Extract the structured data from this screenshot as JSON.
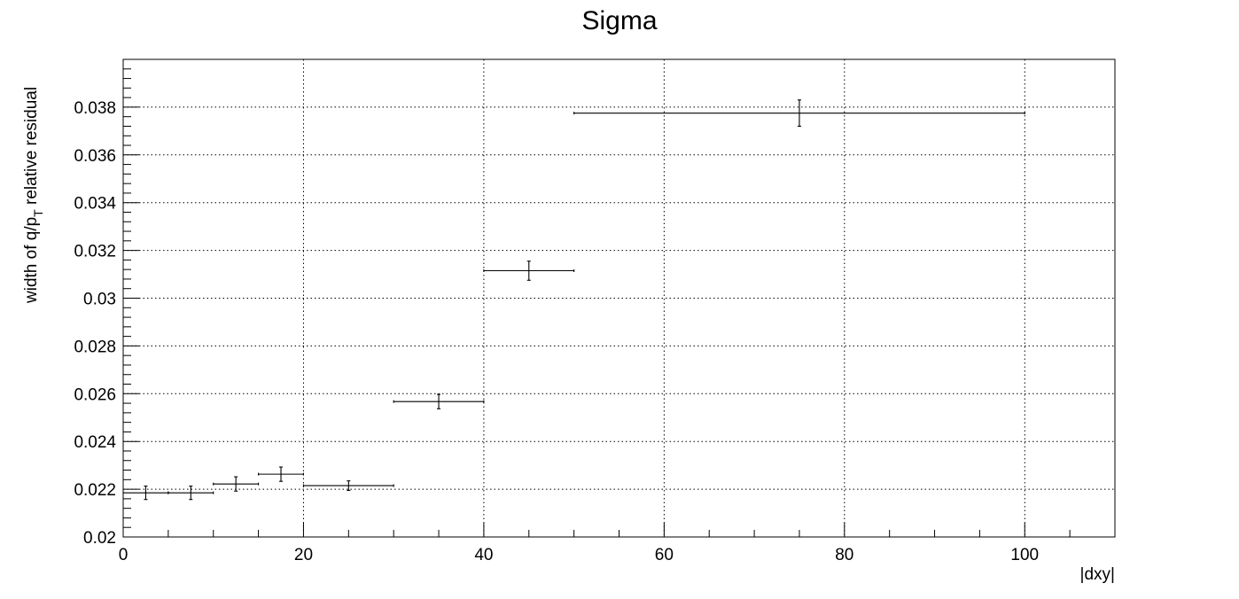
{
  "chart_data": {
    "type": "scatter",
    "title": "Sigma",
    "xlabel": "|dxy|",
    "ylabel_main": "width of q/p",
    "ylabel_sub": "T",
    "ylabel_tail": " relative residual",
    "xlim": [
      0,
      110
    ],
    "ylim": [
      0.02,
      0.04
    ],
    "x_ticks": [
      0,
      20,
      40,
      60,
      80,
      100
    ],
    "x_tick_labels": [
      "0",
      "20",
      "40",
      "60",
      "80",
      "100"
    ],
    "y_ticks": [
      0.02,
      0.022,
      0.024,
      0.026,
      0.028,
      0.03,
      0.032,
      0.034,
      0.036,
      0.038
    ],
    "y_tick_labels": [
      "0.02",
      "0.022",
      "0.024",
      "0.026",
      "0.028",
      "0.03",
      "0.032",
      "0.034",
      "0.036",
      "0.038"
    ],
    "grid": true,
    "points": [
      {
        "x": 2.5,
        "x_low": 0,
        "x_high": 5,
        "y": 0.02185,
        "y_err": 0.00028
      },
      {
        "x": 7.5,
        "x_low": 5,
        "x_high": 10,
        "y": 0.02185,
        "y_err": 0.00028
      },
      {
        "x": 12.5,
        "x_low": 10,
        "x_high": 15,
        "y": 0.02222,
        "y_err": 0.0003
      },
      {
        "x": 17.5,
        "x_low": 15,
        "x_high": 20,
        "y": 0.02263,
        "y_err": 0.0003
      },
      {
        "x": 25,
        "x_low": 20,
        "x_high": 30,
        "y": 0.02215,
        "y_err": 0.0002
      },
      {
        "x": 35,
        "x_low": 30,
        "x_high": 40,
        "y": 0.02567,
        "y_err": 0.0003
      },
      {
        "x": 45,
        "x_low": 40,
        "x_high": 50,
        "y": 0.03115,
        "y_err": 0.0004
      },
      {
        "x": 75,
        "x_low": 50,
        "x_high": 100,
        "y": 0.03775,
        "y_err": 0.00055
      }
    ]
  }
}
